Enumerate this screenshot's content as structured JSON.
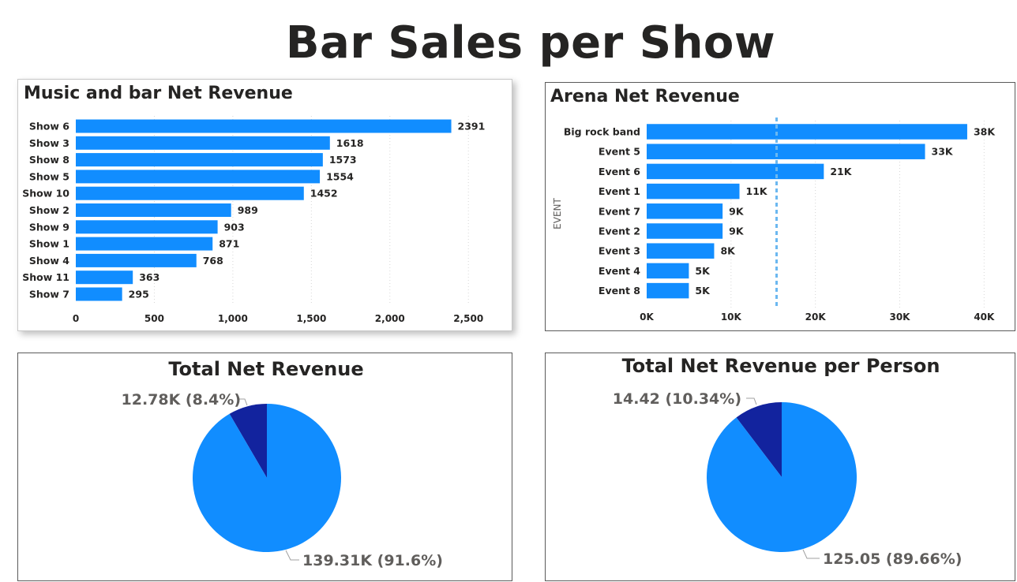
{
  "page_title": "Bar Sales per Show",
  "colors": {
    "bar": "#118DFF",
    "pie_secondary": "#12239E",
    "avg_line": "#6BB8F0"
  },
  "chart_data": [
    {
      "type": "bar",
      "orientation": "horizontal",
      "title": "Music and bar Net Revenue",
      "categories": [
        "Show 6",
        "Show 3",
        "Show 8",
        "Show 5",
        "Show 10",
        "Show 2",
        "Show 9",
        "Show 1",
        "Show 4",
        "Show 11",
        "Show 7"
      ],
      "values": [
        2391,
        1618,
        1573,
        1554,
        1452,
        989,
        903,
        871,
        768,
        363,
        295
      ],
      "data_labels": [
        "2391",
        "1618",
        "1573",
        "1554",
        "1452",
        "989",
        "903",
        "871",
        "768",
        "363",
        "295"
      ],
      "x_ticks": [
        0,
        500,
        1000,
        1500,
        2000,
        2500
      ],
      "x_tick_labels": [
        "0",
        "500",
        "1,000",
        "1,500",
        "2,000",
        "2,500"
      ],
      "xlim": [
        0,
        2700
      ],
      "grid": "vertical dotted"
    },
    {
      "type": "bar",
      "orientation": "horizontal",
      "title": "Arena Net Revenue",
      "ylabel": "EVENT",
      "categories": [
        "Big rock band",
        "Event 5",
        "Event 6",
        "Event 1",
        "Event 7",
        "Event 2",
        "Event 3",
        "Event 4",
        "Event 8"
      ],
      "values": [
        38000,
        33000,
        21000,
        11000,
        9000,
        9000,
        8000,
        5000,
        5000
      ],
      "data_labels": [
        "38K",
        "33K",
        "21K",
        "11K",
        "9K",
        "9K",
        "8K",
        "5K",
        "5K"
      ],
      "x_ticks": [
        0,
        10000,
        20000,
        30000,
        40000
      ],
      "x_tick_labels": [
        "0K",
        "10K",
        "20K",
        "30K",
        "40K"
      ],
      "xlim": [
        0,
        41000
      ],
      "reference_line_value": 15400,
      "grid": "vertical dotted"
    },
    {
      "type": "pie",
      "title": "Total Net Revenue",
      "slices": [
        {
          "value": 12.78,
          "label": "12.78K (8.4%)",
          "percent": 8.4
        },
        {
          "value": 139.31,
          "label": "139.31K (91.6%)",
          "percent": 91.6
        }
      ]
    },
    {
      "type": "pie",
      "title": "Total Net Revenue per Person",
      "slices": [
        {
          "value": 14.42,
          "label": "14.42 (10.34%)",
          "percent": 10.34
        },
        {
          "value": 125.05,
          "label": "125.05 (89.66%)",
          "percent": 89.66
        }
      ]
    }
  ]
}
